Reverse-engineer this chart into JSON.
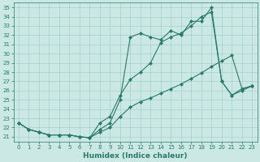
{
  "xlabel": "Humidex (Indice chaleur)",
  "x_values": [
    0,
    1,
    2,
    3,
    4,
    5,
    6,
    7,
    8,
    9,
    10,
    11,
    12,
    13,
    14,
    15,
    16,
    17,
    18,
    19,
    20,
    21,
    22,
    23
  ],
  "line1_y": [
    22.5,
    21.8,
    21.5,
    21.2,
    21.2,
    21.2,
    21.0,
    20.9,
    22.5,
    23.2,
    25.5,
    27.2,
    28.0,
    29.0,
    31.2,
    31.8,
    32.2,
    33.0,
    34.0,
    34.5,
    27.0,
    25.5,
    26.0,
    26.5
  ],
  "line2_y": [
    22.5,
    21.8,
    21.5,
    21.2,
    21.2,
    21.2,
    21.0,
    20.9,
    21.8,
    22.5,
    25.0,
    31.8,
    32.2,
    31.8,
    31.5,
    32.5,
    32.0,
    33.5,
    33.5,
    35.0,
    27.0,
    25.5,
    26.2,
    26.5
  ],
  "line3_y": [
    22.5,
    21.8,
    21.5,
    21.2,
    21.2,
    21.2,
    21.0,
    20.9,
    21.5,
    22.0,
    23.2,
    24.2,
    24.8,
    25.2,
    25.7,
    26.2,
    26.7,
    27.3,
    27.9,
    28.6,
    29.2,
    29.8,
    26.2,
    26.5
  ],
  "line_color": "#2a7a6a",
  "bg_color": "#cce8e4",
  "grid_color": "#99cdc8",
  "ylim_min": 20.5,
  "ylim_max": 35.5,
  "xlim_min": -0.5,
  "xlim_max": 23.5,
  "yticks": [
    21,
    22,
    23,
    24,
    25,
    26,
    27,
    28,
    29,
    30,
    31,
    32,
    33,
    34,
    35
  ],
  "xticks": [
    0,
    1,
    2,
    3,
    4,
    5,
    6,
    7,
    8,
    9,
    10,
    11,
    12,
    13,
    14,
    15,
    16,
    17,
    18,
    19,
    20,
    21,
    22,
    23
  ],
  "tick_fontsize": 5,
  "xlabel_fontsize": 6.5,
  "lw": 0.8,
  "ms": 2.2
}
